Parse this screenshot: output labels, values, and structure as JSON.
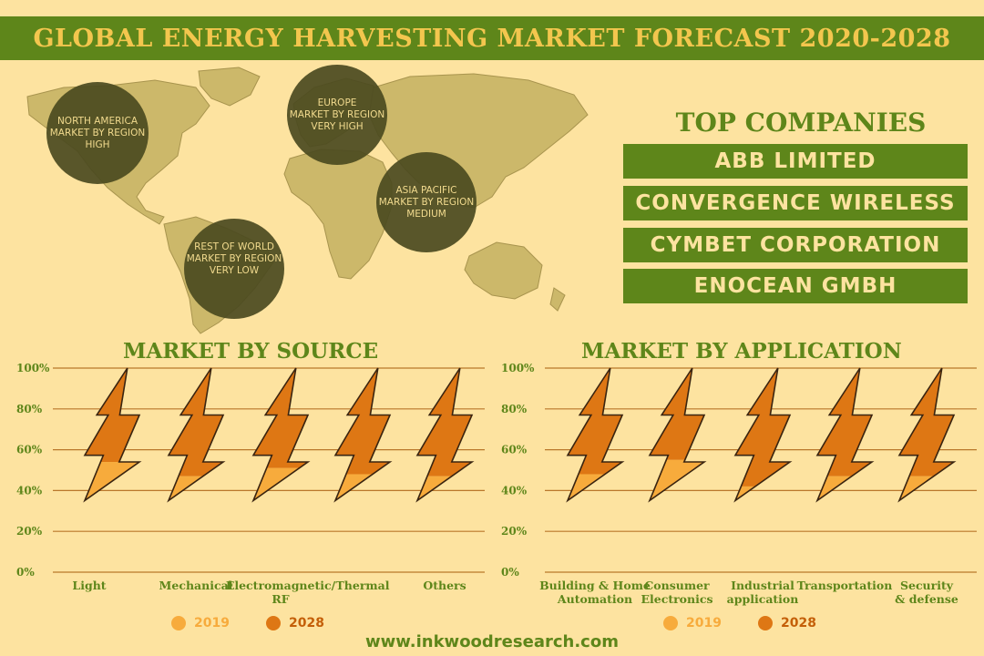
{
  "title": "GLOBAL ENERGY HARVESTING MARKET FORECAST 2020-2028",
  "regions": [
    {
      "lines": [
        "NORTH AMERICA",
        "MARKET BY REGION",
        "HIGH"
      ]
    },
    {
      "lines": [
        "EUROPE",
        "MARKET BY REGION",
        "VERY HIGH"
      ]
    },
    {
      "lines": [
        "ASIA PACIFIC",
        "MARKET BY REGION",
        "MEDIUM"
      ]
    },
    {
      "lines": [
        "REST OF WORLD",
        "MARKET BY REGION",
        "VERY LOW"
      ]
    }
  ],
  "top_companies": {
    "title": "TOP COMPANIES",
    "items": [
      "ABB LIMITED",
      "CONVERGENCE WIRELESS",
      "CYMBET CORPORATION",
      "ENOCEAN GMBH"
    ]
  },
  "source_title": "MARKET BY SOURCE",
  "application_title": "MARKET BY APPLICATION",
  "colors": {
    "green": "#5e861a",
    "c2019": "#f7ab3c",
    "c2028": "#de7714",
    "outline": "#3a2410"
  },
  "chart_data": [
    {
      "type": "bar",
      "title": "MARKET BY SOURCE",
      "ticks": [
        "100%",
        "80%",
        "60%",
        "40%",
        "20%",
        "0%"
      ],
      "ylim": [
        0,
        100
      ],
      "categories": [
        [
          "Light"
        ],
        [
          "Mechanical"
        ],
        [
          "Electromagnetic/",
          "RF"
        ],
        [
          "Thermal"
        ],
        [
          "Others"
        ]
      ],
      "series": [
        {
          "name": "2019",
          "values": [
            54,
            47,
            51,
            48,
            47
          ]
        },
        {
          "name": "2028",
          "values": [
            100,
            100,
            100,
            100,
            100
          ]
        }
      ],
      "legend": [
        "2019",
        "2028"
      ]
    },
    {
      "type": "bar",
      "title": "MARKET BY APPLICATION",
      "ticks": [
        "100%",
        "80%",
        "60%",
        "40%",
        "20%",
        "0%"
      ],
      "ylim": [
        0,
        100
      ],
      "categories": [
        [
          "Building & Home",
          "Automation"
        ],
        [
          "Consumer",
          "Electronics"
        ],
        [
          "Industrial",
          "application"
        ],
        [
          "Transportation"
        ],
        [
          "Security",
          "& defense"
        ]
      ],
      "series": [
        {
          "name": "2019",
          "values": [
            48,
            55,
            42,
            47,
            47
          ]
        },
        {
          "name": "2028",
          "values": [
            100,
            100,
            100,
            100,
            100
          ]
        }
      ],
      "legend": [
        "2019",
        "2028"
      ]
    }
  ],
  "footer": "www.inkwoodresearch.com"
}
